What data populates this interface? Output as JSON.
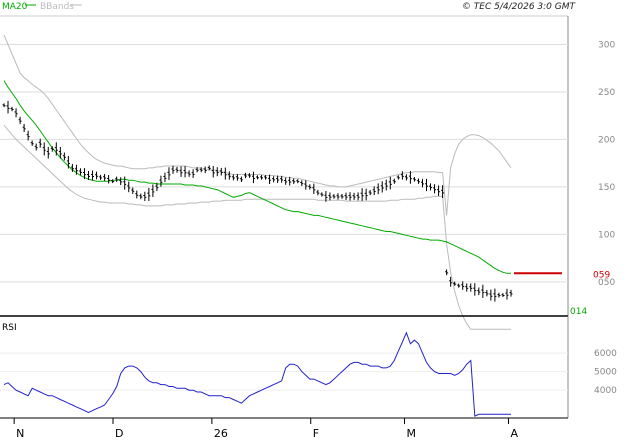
{
  "header": {
    "legend": [
      {
        "label": "MA20",
        "color": "#00aa00"
      },
      {
        "label": "BBands",
        "color": "#bbbbbb"
      }
    ],
    "copyright": "© TEC 5/4/2026 3:0 GMT"
  },
  "colors": {
    "bars": "#000000",
    "ma": "#00aa00",
    "bbands": "#bbbbbb",
    "rsi": "#2222cc",
    "last_level": "#cc0000",
    "grid": "#dddddd"
  },
  "chart_data": [
    {
      "type": "ohlc",
      "title": "",
      "xlabel": "",
      "ylabel": "",
      "ylim": [
        14,
        330
      ],
      "y_ticks": [
        "300",
        "250",
        "200",
        "150",
        "100",
        "050"
      ],
      "y_tick_values": [
        300,
        250,
        200,
        150,
        100,
        50
      ],
      "x_ticks": [
        "N",
        "D",
        "26",
        "F",
        "M",
        "A"
      ],
      "last_value_label": "059",
      "last_value": 59,
      "min_value_label": "014",
      "min_value": 14,
      "grid": true,
      "series": [
        {
          "name": "price",
          "values": [
            236,
            234,
            232,
            228,
            220,
            212,
            204,
            196,
            192,
            196,
            190,
            186,
            190,
            190,
            186,
            182,
            176,
            170,
            168,
            166,
            164,
            162,
            162,
            162,
            160,
            160,
            158,
            156,
            158,
            156,
            154,
            150,
            146,
            142,
            140,
            140,
            142,
            146,
            150,
            156,
            160,
            164,
            168,
            168,
            166,
            166,
            164,
            164,
            168,
            168,
            168,
            170,
            166,
            166,
            166,
            164,
            162,
            160,
            160,
            158,
            162,
            162,
            160,
            160,
            160,
            160,
            158,
            158,
            158,
            158,
            156,
            156,
            156,
            156,
            154,
            152,
            150,
            148,
            144,
            142,
            140,
            140,
            140,
            140,
            140,
            140,
            140,
            140,
            140,
            142,
            142,
            144,
            146,
            148,
            150,
            152,
            154,
            156,
            160,
            162,
            160,
            160,
            158,
            156,
            154,
            152,
            150,
            148,
            146,
            145,
            60,
            50,
            48,
            46,
            46,
            44,
            44,
            42,
            40,
            40,
            38,
            36,
            36,
            36,
            36,
            37,
            38
          ]
        },
        {
          "name": "MA20",
          "values": [
            262,
            255,
            249,
            243,
            236,
            230,
            225,
            220,
            215,
            209,
            203,
            197,
            191,
            186,
            181,
            176,
            172,
            168,
            165,
            162,
            160,
            158,
            157,
            156,
            156,
            156,
            156,
            157,
            157,
            158,
            158,
            157,
            157,
            156,
            155,
            155,
            154,
            154,
            153,
            153,
            153,
            153,
            153,
            153,
            153,
            152,
            152,
            152,
            151,
            151,
            150,
            149,
            148,
            147,
            145,
            143,
            141,
            139,
            140,
            141,
            143,
            144,
            142,
            140,
            138,
            136,
            134,
            132,
            130,
            128,
            126,
            125,
            124,
            124,
            123,
            122,
            121,
            120,
            120,
            119,
            118,
            117,
            116,
            115,
            114,
            113,
            112,
            111,
            110,
            109,
            108,
            107,
            106,
            105,
            104,
            103,
            103,
            102,
            101,
            100,
            99,
            98,
            97,
            96,
            95,
            95,
            94,
            94,
            94,
            93,
            92,
            90,
            88,
            86,
            84,
            82,
            80,
            78,
            76,
            73,
            70,
            67,
            64,
            62,
            60,
            59,
            59
          ]
        },
        {
          "name": "BBands upper",
          "values": [
            310,
            300,
            290,
            280,
            270,
            265,
            262,
            258,
            255,
            252,
            248,
            243,
            237,
            231,
            225,
            219,
            213,
            207,
            201,
            195,
            190,
            186,
            182,
            179,
            177,
            175,
            174,
            173,
            172,
            172,
            171,
            170,
            169,
            169,
            169,
            169,
            170,
            170,
            171,
            171,
            172,
            172,
            172,
            172,
            172,
            172,
            171,
            170,
            170,
            170,
            169,
            168,
            168,
            167,
            166,
            165,
            164,
            163,
            163,
            163,
            163,
            163,
            163,
            163,
            163,
            162,
            162,
            162,
            161,
            161,
            160,
            160,
            159,
            159,
            158,
            157,
            156,
            155,
            154,
            153,
            152,
            151,
            151,
            150,
            150,
            150,
            151,
            152,
            153,
            154,
            155,
            156,
            157,
            158,
            159,
            160,
            161,
            162,
            163,
            164,
            165,
            165,
            166,
            166,
            166,
            166,
            166,
            166,
            165,
            165,
            120,
            170,
            185,
            195,
            200,
            203,
            205,
            205,
            204,
            202,
            199,
            196,
            192,
            188,
            182,
            176,
            170
          ]
        },
        {
          "name": "BBands lower",
          "values": [
            215,
            210,
            205,
            200,
            196,
            192,
            188,
            184,
            180,
            176,
            172,
            168,
            164,
            160,
            156,
            152,
            148,
            145,
            142,
            140,
            138,
            137,
            136,
            135,
            134,
            134,
            133,
            133,
            133,
            133,
            133,
            132,
            132,
            131,
            131,
            130,
            130,
            130,
            130,
            130,
            131,
            131,
            131,
            132,
            132,
            132,
            133,
            133,
            133,
            134,
            134,
            134,
            135,
            135,
            135,
            136,
            136,
            136,
            136,
            136,
            137,
            137,
            137,
            137,
            137,
            137,
            137,
            137,
            137,
            137,
            137,
            137,
            137,
            137,
            137,
            137,
            137,
            137,
            136,
            136,
            136,
            136,
            136,
            136,
            136,
            135,
            135,
            135,
            135,
            135,
            135,
            135,
            135,
            135,
            135,
            135,
            136,
            136,
            136,
            137,
            137,
            137,
            137,
            138,
            138,
            139,
            139,
            140,
            140,
            140,
            90,
            60,
            40,
            25,
            14,
            6,
            0,
            0,
            0,
            0,
            0,
            0,
            0,
            0,
            0,
            0,
            0
          ]
        }
      ]
    },
    {
      "type": "line",
      "title": "RSI",
      "xlabel": "",
      "ylabel": "",
      "ylim": [
        2500,
        8000
      ],
      "y_ticks": [
        "6000",
        "5000",
        "4000"
      ],
      "y_tick_values": [
        6000,
        5000,
        4000
      ],
      "series": [
        {
          "name": "RSI",
          "values": [
            4300,
            4400,
            4200,
            4000,
            3900,
            3800,
            3700,
            4100,
            4000,
            3900,
            3800,
            3700,
            3700,
            3600,
            3500,
            3400,
            3300,
            3200,
            3100,
            3000,
            2900,
            2800,
            2900,
            3000,
            3100,
            3200,
            3500,
            3800,
            4200,
            4900,
            5200,
            5300,
            5300,
            5200,
            5000,
            4700,
            4500,
            4400,
            4400,
            4300,
            4300,
            4200,
            4200,
            4100,
            4100,
            4100,
            4000,
            4000,
            3900,
            3900,
            3800,
            3700,
            3700,
            3700,
            3700,
            3600,
            3600,
            3500,
            3400,
            3300,
            3500,
            3700,
            3800,
            3900,
            4000,
            4100,
            4200,
            4300,
            4400,
            4500,
            5200,
            5400,
            5400,
            5300,
            5000,
            4800,
            4600,
            4600,
            4500,
            4400,
            4300,
            4400,
            4600,
            4800,
            5000,
            5200,
            5400,
            5500,
            5500,
            5400,
            5400,
            5300,
            5300,
            5300,
            5200,
            5200,
            5300,
            5600,
            6100,
            6600,
            7100,
            6500,
            6700,
            6500,
            6000,
            5500,
            5200,
            5000,
            4900,
            4900,
            4900,
            4900,
            4800,
            4900,
            5100,
            5400,
            5600,
            2600,
            2700,
            2700,
            2700,
            2700,
            2700,
            2700,
            2700,
            2700,
            2700
          ]
        }
      ]
    }
  ]
}
